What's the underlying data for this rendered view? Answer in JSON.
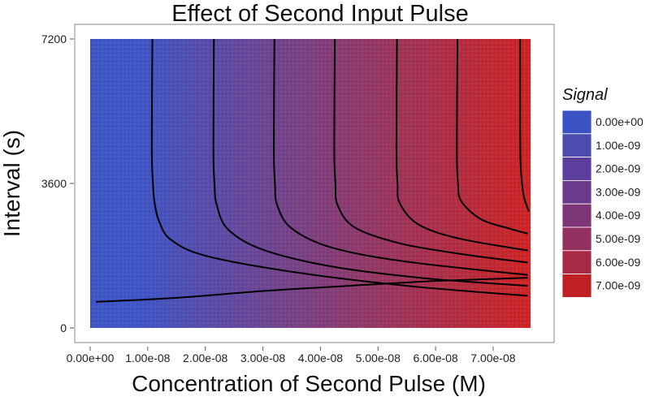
{
  "chart_data": {
    "type": "heatmap",
    "title": "Effect of Second Input Pulse",
    "xlabel": "Concentration of Second Pulse (M)",
    "ylabel": "Interval (s)",
    "xlim": [
      0,
      7.65e-08
    ],
    "ylim": [
      0,
      7200
    ],
    "x_ticks": [
      {
        "value": 0,
        "label": "0.00e+00"
      },
      {
        "value": 1e-08,
        "label": "1.00e-08"
      },
      {
        "value": 2e-08,
        "label": "2.00e-08"
      },
      {
        "value": 3e-08,
        "label": "3.00e-08"
      },
      {
        "value": 4e-08,
        "label": "4.00e-08"
      },
      {
        "value": 5e-08,
        "label": "5.00e-08"
      },
      {
        "value": 6e-08,
        "label": "6.00e-08"
      },
      {
        "value": 7e-08,
        "label": "7.00e-08"
      }
    ],
    "y_ticks": [
      {
        "value": 0,
        "label": "0"
      },
      {
        "value": 3600,
        "label": "3600"
      },
      {
        "value": 7200,
        "label": "7200"
      }
    ],
    "contour_lines": [
      {
        "level": 1e-09,
        "points": [
          [
            1e-09,
            650
          ],
          [
            1.5e-08,
            750
          ],
          [
            3e-08,
            920
          ],
          [
            4.5e-08,
            1050
          ],
          [
            6e-08,
            1170
          ],
          [
            7.6e-08,
            1250
          ]
        ]
      },
      {
        "level": 2e-09,
        "points": [
          [
            1.08e-08,
            7200
          ],
          [
            1.07e-08,
            4500
          ],
          [
            1.09e-08,
            3600
          ],
          [
            1.12e-08,
            3100
          ],
          [
            1.2e-08,
            2650
          ],
          [
            1.4e-08,
            2200
          ],
          [
            2e-08,
            1800
          ],
          [
            3.5e-08,
            1400
          ],
          [
            5.5e-08,
            1050
          ],
          [
            7.6e-08,
            800
          ]
        ]
      },
      {
        "level": 3e-09,
        "points": [
          [
            2.15e-08,
            7200
          ],
          [
            2.14e-08,
            4500
          ],
          [
            2.16e-08,
            3600
          ],
          [
            2.2e-08,
            3050
          ],
          [
            2.4e-08,
            2450
          ],
          [
            3e-08,
            1950
          ],
          [
            4.2e-08,
            1530
          ],
          [
            5.8e-08,
            1240
          ],
          [
            7.6e-08,
            1050
          ]
        ]
      },
      {
        "level": 4e-09,
        "points": [
          [
            3.2e-08,
            7200
          ],
          [
            3.19e-08,
            4500
          ],
          [
            3.21e-08,
            3600
          ],
          [
            3.25e-08,
            3050
          ],
          [
            3.5e-08,
            2480
          ],
          [
            4.2e-08,
            2000
          ],
          [
            5.5e-08,
            1650
          ],
          [
            7.6e-08,
            1320
          ]
        ]
      },
      {
        "level": 5e-09,
        "points": [
          [
            4.25e-08,
            7200
          ],
          [
            4.24e-08,
            4500
          ],
          [
            4.26e-08,
            3600
          ],
          [
            4.3e-08,
            3050
          ],
          [
            4.6e-08,
            2500
          ],
          [
            5.4e-08,
            2100
          ],
          [
            6.5e-08,
            1830
          ],
          [
            7.6e-08,
            1630
          ]
        ]
      },
      {
        "level": 6e-09,
        "points": [
          [
            5.33e-08,
            7200
          ],
          [
            5.32e-08,
            4500
          ],
          [
            5.34e-08,
            3600
          ],
          [
            5.38e-08,
            3100
          ],
          [
            5.7e-08,
            2580
          ],
          [
            6.4e-08,
            2230
          ],
          [
            7.6e-08,
            1930
          ]
        ]
      },
      {
        "level": 7e-09,
        "points": [
          [
            6.38e-08,
            7200
          ],
          [
            6.37e-08,
            4500
          ],
          [
            6.39e-08,
            3600
          ],
          [
            6.45e-08,
            3150
          ],
          [
            6.8e-08,
            2700
          ],
          [
            7.3e-08,
            2470
          ],
          [
            7.6e-08,
            2350
          ]
        ]
      },
      {
        "level": 7.5e-09,
        "points": [
          [
            7.47e-08,
            7200
          ],
          [
            7.47e-08,
            5000
          ],
          [
            7.48e-08,
            4000
          ],
          [
            7.53e-08,
            3300
          ],
          [
            7.62e-08,
            2900
          ]
        ]
      }
    ],
    "legend": {
      "title": "Signal",
      "placement": "right",
      "entries": [
        {
          "label": "0.00e+00",
          "color": "#3b52c4"
        },
        {
          "label": "1.00e-09",
          "color": "#4c4cae"
        },
        {
          "label": "2.00e-09",
          "color": "#5c3f9c"
        },
        {
          "label": "3.00e-09",
          "color": "#6c3a8a"
        },
        {
          "label": "4.00e-09",
          "color": "#7e3577"
        },
        {
          "label": "5.00e-09",
          "color": "#933060"
        },
        {
          "label": "6.00e-09",
          "color": "#a82943"
        },
        {
          "label": "7.00e-09",
          "color": "#be2025"
        }
      ]
    },
    "color_scale": {
      "low": "#3b52c4",
      "high": "#cc2020"
    },
    "grid": true
  }
}
